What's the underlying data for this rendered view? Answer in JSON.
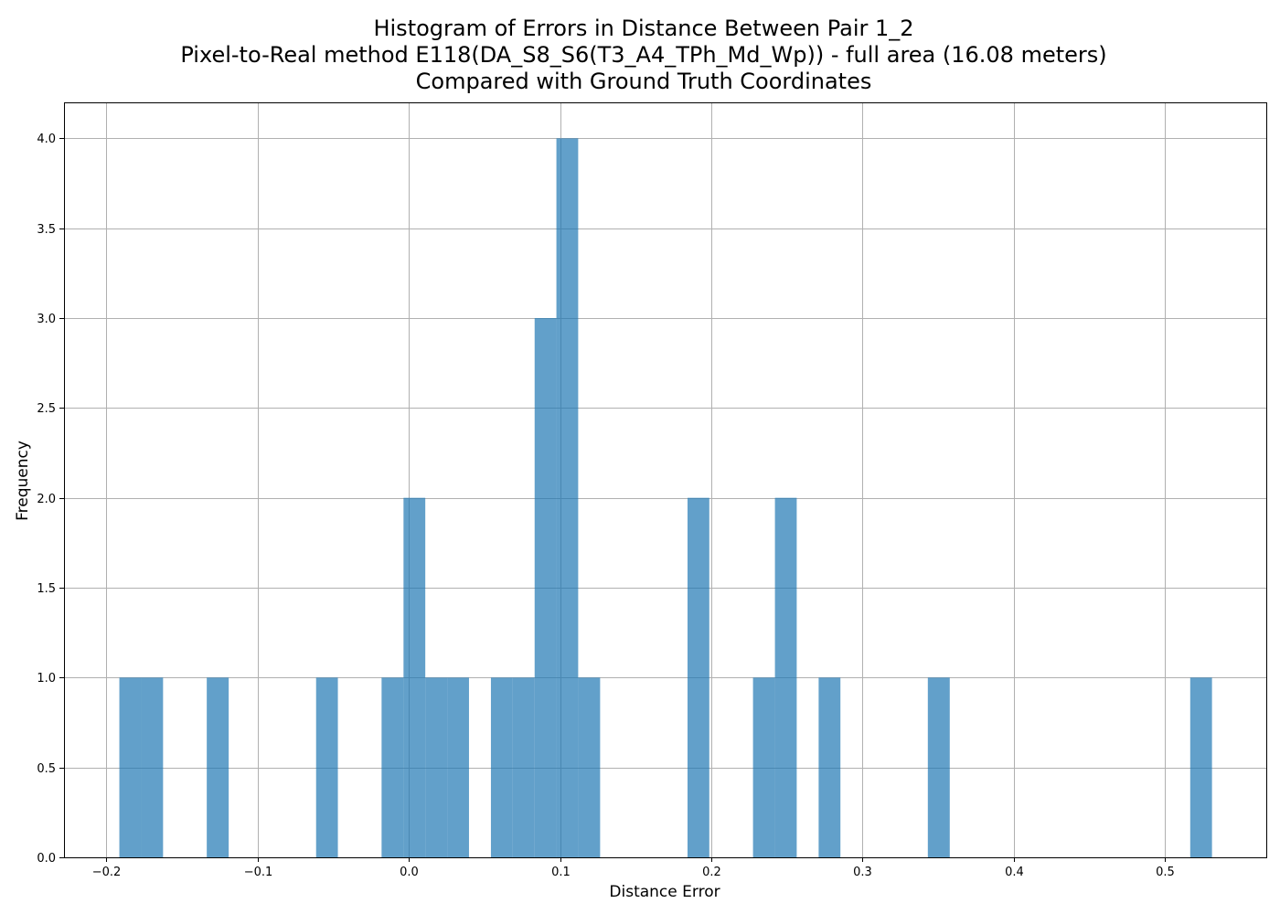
{
  "chart_data": {
    "type": "bar",
    "title_lines": [
      "Histogram of Errors in Distance Between Pair 1_2",
      "Pixel-to-Real method E118(DA_S8_S6(T3_A4_TPh_Md_Wp)) - full area (16.08 meters)",
      "Compared with Ground Truth Coordinates"
    ],
    "xlabel": "Distance Error",
    "ylabel": "Frequency",
    "xlim": [
      -0.228,
      0.567
    ],
    "ylim": [
      0,
      4.2
    ],
    "grid": true,
    "bar_color": "#1f77b4",
    "bar_opacity": 0.7,
    "x_ticks": [
      -0.2,
      -0.1,
      0.0,
      0.1,
      0.2,
      0.3,
      0.4,
      0.5
    ],
    "x_tick_labels": [
      "−0.2",
      "−0.1",
      "0.0",
      "0.1",
      "0.2",
      "0.3",
      "0.4",
      "0.5"
    ],
    "y_ticks": [
      0.0,
      0.5,
      1.0,
      1.5,
      2.0,
      2.5,
      3.0,
      3.5,
      4.0
    ],
    "y_tick_labels": [
      "0.0",
      "0.5",
      "1.0",
      "1.5",
      "2.0",
      "2.5",
      "3.0",
      "3.5",
      "4.0"
    ],
    "bins": [
      {
        "start": -0.1914,
        "end": -0.1769,
        "value": 1
      },
      {
        "start": -0.1769,
        "end": -0.1625,
        "value": 1
      },
      {
        "start": -0.1336,
        "end": -0.1191,
        "value": 1
      },
      {
        "start": -0.0613,
        "end": -0.0469,
        "value": 1
      },
      {
        "start": -0.018,
        "end": -0.0035,
        "value": 1
      },
      {
        "start": -0.0035,
        "end": 0.0109,
        "value": 2
      },
      {
        "start": 0.0109,
        "end": 0.0254,
        "value": 1
      },
      {
        "start": 0.0254,
        "end": 0.0398,
        "value": 1
      },
      {
        "start": 0.0543,
        "end": 0.0687,
        "value": 1
      },
      {
        "start": 0.0687,
        "end": 0.0832,
        "value": 1
      },
      {
        "start": 0.0832,
        "end": 0.0976,
        "value": 3
      },
      {
        "start": 0.0976,
        "end": 0.112,
        "value": 4
      },
      {
        "start": 0.112,
        "end": 0.1265,
        "value": 1
      },
      {
        "start": 0.1843,
        "end": 0.1987,
        "value": 2
      },
      {
        "start": 0.2276,
        "end": 0.2421,
        "value": 1
      },
      {
        "start": 0.2421,
        "end": 0.2565,
        "value": 2
      },
      {
        "start": 0.271,
        "end": 0.2854,
        "value": 1
      },
      {
        "start": 0.3432,
        "end": 0.3577,
        "value": 1
      },
      {
        "start": 0.5167,
        "end": 0.5311,
        "value": 1
      }
    ]
  }
}
